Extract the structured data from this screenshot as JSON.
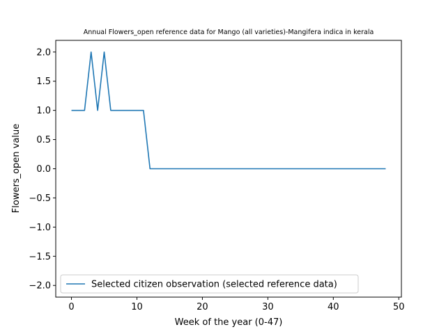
{
  "chart_data": {
    "type": "line",
    "title": "Annual Flowers_open reference data for Mango (all varieties)-Mangifera indica in kerala",
    "xlabel": "Week of the year (0-47)",
    "ylabel": "Flowers_open value",
    "xlim": [
      -2.4,
      50.4
    ],
    "ylim": [
      -2.2,
      2.2
    ],
    "xticks": [
      0,
      10,
      20,
      30,
      40,
      50
    ],
    "yticks": [
      -2.0,
      -1.5,
      -1.0,
      -0.5,
      0.0,
      0.5,
      1.0,
      1.5,
      2.0
    ],
    "xtick_labels": [
      "0",
      "10",
      "20",
      "30",
      "40",
      "50"
    ],
    "ytick_labels": [
      "−2.0",
      "−1.5",
      "−1.0",
      "−0.5",
      "0.0",
      "0.5",
      "1.0",
      "1.5",
      "2.0"
    ],
    "grid": false,
    "legend_position": "lower-left",
    "series": [
      {
        "name": "Selected citizen observation (selected reference data)",
        "color": "#1f77b4",
        "x": [
          0,
          1,
          2,
          3,
          4,
          5,
          6,
          7,
          8,
          9,
          10,
          11,
          12,
          13,
          14,
          15,
          16,
          17,
          18,
          19,
          20,
          21,
          22,
          23,
          24,
          25,
          26,
          27,
          28,
          29,
          30,
          31,
          32,
          33,
          34,
          35,
          36,
          37,
          38,
          39,
          40,
          41,
          42,
          43,
          44,
          45,
          46,
          47,
          48
        ],
        "y": [
          1,
          1,
          1,
          2,
          1,
          2,
          1,
          1,
          1,
          1,
          1,
          1,
          0,
          0,
          0,
          0,
          0,
          0,
          0,
          0,
          0,
          0,
          0,
          0,
          0,
          0,
          0,
          0,
          0,
          0,
          0,
          0,
          0,
          0,
          0,
          0,
          0,
          0,
          0,
          0,
          0,
          0,
          0,
          0,
          0,
          0,
          0,
          0,
          0
        ]
      }
    ]
  }
}
